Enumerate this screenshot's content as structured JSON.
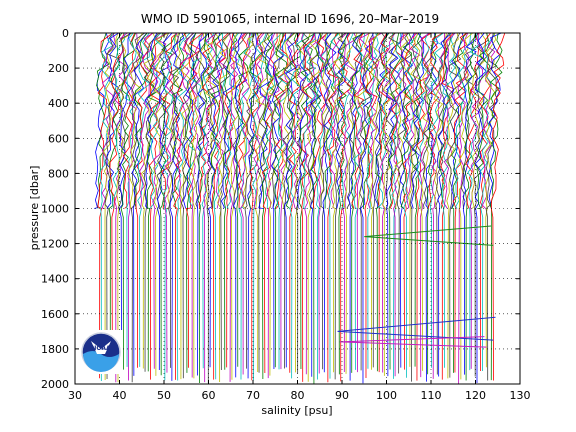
{
  "chart_data": {
    "type": "line",
    "title": "WMO ID 5901065, internal ID 1696, 20–Mar–2019",
    "xlabel": "salinity [psu]",
    "ylabel": "pressure [dbar]",
    "xlim": [
      30,
      130
    ],
    "ylim": [
      0,
      2000
    ],
    "y_reversed": true,
    "grid": true,
    "x_ticks": [
      "30",
      "40",
      "50",
      "60",
      "70",
      "80",
      "90",
      "100",
      "110",
      "120",
      "130"
    ],
    "y_ticks": [
      "0",
      "200",
      "400",
      "600",
      "800",
      "1000",
      "1200",
      "1400",
      "1600",
      "1800",
      "2000"
    ],
    "series_description": "Many offset salinity profiles; each profile plotted shifted by a constant step in salinity. Profiles extend to ~1000 dbar (early) and ~2000 dbar (later).",
    "profiles": {
      "first_start_salinity": 34.7,
      "last_start_salinity": 124.0,
      "count": 220,
      "shallow_max_pressure": 1000,
      "deep_max_pressure": 2000,
      "deep_from_salinity": 35.5
    },
    "anomalies": [
      {
        "x": [
          123.5,
          95.0,
          124.0
        ],
        "y": [
          1100,
          1160,
          1210
        ],
        "color": "#1a8a1a"
      },
      {
        "x": [
          124.5,
          89.0,
          124.0
        ],
        "y": [
          1620,
          1700,
          1750
        ],
        "color": "#2030c8"
      },
      {
        "x": [
          122.0,
          89.5,
          122.5
        ],
        "y": [
          1730,
          1760,
          1790
        ],
        "color": "#c020c0"
      }
    ],
    "colors": [
      "#0000ff",
      "#008000",
      "#ff0000",
      "#00bfbf",
      "#bf00bf",
      "#bfbf00",
      "#404040"
    ]
  },
  "logo": {
    "name": "NOAA",
    "text": "NOAA"
  }
}
